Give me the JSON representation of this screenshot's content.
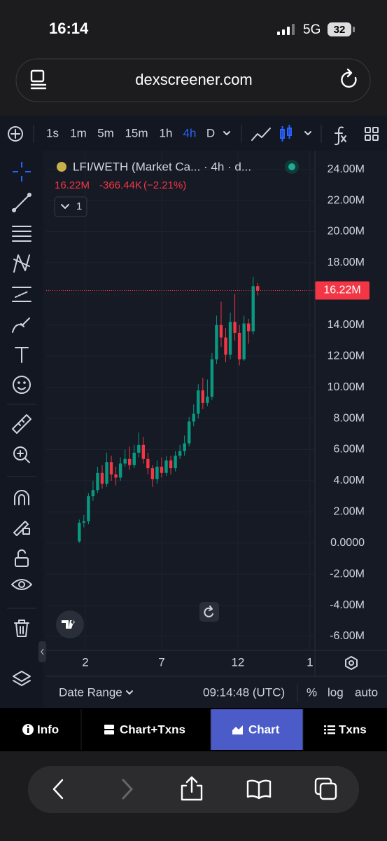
{
  "status_bar": {
    "time": "16:14",
    "network": "5G",
    "battery": "32"
  },
  "url_bar": {
    "url": "dexscreener.com"
  },
  "toolbar": {
    "timeframes": [
      "1s",
      "1m",
      "5m",
      "15m",
      "1h",
      "4h",
      "D"
    ],
    "active_timeframe": 5
  },
  "chart": {
    "type": "candlestick",
    "legend_title": "LFI/WETH (Market Ca... · 4h · d...",
    "last_value": "16.22M",
    "change": "-366.44K",
    "change_pct": "(−2.21%)",
    "indicator_count": "1",
    "current_price": 16.22,
    "current_price_label": "16.22M",
    "up_color": "#089981",
    "down_color": "#f23645",
    "ylim": [
      -6.9,
      24.75
    ],
    "yticks": [
      {
        "value": 24,
        "label": "24.00M"
      },
      {
        "value": 22,
        "label": "22.00M"
      },
      {
        "value": 20,
        "label": "20.00M"
      },
      {
        "value": 18,
        "label": "18.00M"
      },
      {
        "value": 16,
        "label": "16.00M"
      },
      {
        "value": 14,
        "label": "14.00M"
      },
      {
        "value": 12,
        "label": "12.00M"
      },
      {
        "value": 10,
        "label": "10.00M"
      },
      {
        "value": 8,
        "label": "8.00M"
      },
      {
        "value": 6,
        "label": "6.00M"
      },
      {
        "value": 4,
        "label": "4.00M"
      },
      {
        "value": 2,
        "label": "2.00M"
      },
      {
        "value": 0,
        "label": "0.0000"
      },
      {
        "value": -2,
        "label": "-2.00M"
      },
      {
        "value": -4,
        "label": "-4.00M"
      },
      {
        "value": -6,
        "label": "-6.00M"
      }
    ],
    "xlim": [
      -0.57,
      17.05
    ],
    "xticks": [
      2,
      7,
      12,
      {
        "value": 16.72,
        "label": "1"
      }
    ],
    "grid": true,
    "candles": [
      {
        "x": 1.6,
        "open": 0.1,
        "high": 1.5,
        "low": 0.0,
        "close": 1.3
      },
      {
        "x": 1.9,
        "open": 1.3,
        "high": 1.8,
        "low": 1.0,
        "close": 1.4
      },
      {
        "x": 2.2,
        "open": 1.4,
        "high": 3.2,
        "low": 1.2,
        "close": 3.0
      },
      {
        "x": 2.5,
        "open": 3.0,
        "high": 4.0,
        "low": 2.7,
        "close": 3.4
      },
      {
        "x": 2.8,
        "open": 3.4,
        "high": 4.9,
        "low": 3.2,
        "close": 4.5
      },
      {
        "x": 3.1,
        "open": 4.5,
        "high": 5.0,
        "low": 3.5,
        "close": 3.8
      },
      {
        "x": 3.4,
        "open": 3.8,
        "high": 5.8,
        "low": 3.6,
        "close": 5.2
      },
      {
        "x": 3.7,
        "open": 5.2,
        "high": 5.6,
        "low": 4.0,
        "close": 4.4
      },
      {
        "x": 4.0,
        "open": 4.4,
        "high": 4.9,
        "low": 3.7,
        "close": 4.2
      },
      {
        "x": 4.3,
        "open": 4.2,
        "high": 5.5,
        "low": 4.0,
        "close": 5.1
      },
      {
        "x": 4.6,
        "open": 5.1,
        "high": 6.0,
        "low": 4.9,
        "close": 5.4
      },
      {
        "x": 4.9,
        "open": 5.4,
        "high": 6.2,
        "low": 4.7,
        "close": 5.0
      },
      {
        "x": 5.2,
        "open": 5.0,
        "high": 6.3,
        "low": 4.8,
        "close": 5.8
      },
      {
        "x": 5.5,
        "open": 5.8,
        "high": 7.1,
        "low": 5.5,
        "close": 6.3
      },
      {
        "x": 5.8,
        "open": 6.3,
        "high": 6.8,
        "low": 5.1,
        "close": 5.4
      },
      {
        "x": 6.1,
        "open": 5.4,
        "high": 5.8,
        "low": 4.4,
        "close": 4.8
      },
      {
        "x": 6.4,
        "open": 4.8,
        "high": 5.0,
        "low": 3.6,
        "close": 4.1
      },
      {
        "x": 6.7,
        "open": 4.1,
        "high": 5.3,
        "low": 3.8,
        "close": 4.9
      },
      {
        "x": 7.0,
        "open": 4.9,
        "high": 5.5,
        "low": 4.2,
        "close": 4.5
      },
      {
        "x": 7.3,
        "open": 4.5,
        "high": 5.6,
        "low": 4.3,
        "close": 5.3
      },
      {
        "x": 7.6,
        "open": 5.3,
        "high": 5.6,
        "low": 4.4,
        "close": 4.8
      },
      {
        "x": 7.9,
        "open": 4.8,
        "high": 5.9,
        "low": 4.6,
        "close": 5.6
      },
      {
        "x": 8.2,
        "open": 5.6,
        "high": 6.3,
        "low": 5.4,
        "close": 5.9
      },
      {
        "x": 8.5,
        "open": 5.9,
        "high": 6.9,
        "low": 5.6,
        "close": 6.4
      },
      {
        "x": 8.8,
        "open": 6.4,
        "high": 8.1,
        "low": 6.2,
        "close": 7.8
      },
      {
        "x": 9.1,
        "open": 7.8,
        "high": 8.9,
        "low": 7.5,
        "close": 8.3
      },
      {
        "x": 9.4,
        "open": 8.3,
        "high": 10.2,
        "low": 8.0,
        "close": 9.8
      },
      {
        "x": 9.7,
        "open": 9.8,
        "high": 10.6,
        "low": 8.6,
        "close": 9.0
      },
      {
        "x": 10.0,
        "open": 9.0,
        "high": 10.5,
        "low": 8.8,
        "close": 9.4
      },
      {
        "x": 10.3,
        "open": 9.4,
        "high": 12.2,
        "low": 9.2,
        "close": 11.8
      },
      {
        "x": 10.6,
        "open": 11.8,
        "high": 14.6,
        "low": 11.5,
        "close": 14.0
      },
      {
        "x": 10.9,
        "open": 14.0,
        "high": 15.5,
        "low": 12.6,
        "close": 13.2
      },
      {
        "x": 11.2,
        "open": 13.2,
        "high": 13.8,
        "low": 11.6,
        "close": 12.1
      },
      {
        "x": 11.5,
        "open": 12.1,
        "high": 14.8,
        "low": 11.8,
        "close": 14.2
      },
      {
        "x": 11.8,
        "open": 14.2,
        "high": 16.0,
        "low": 13.0,
        "close": 13.5
      },
      {
        "x": 12.1,
        "open": 13.5,
        "high": 14.0,
        "low": 11.4,
        "close": 11.8
      },
      {
        "x": 12.4,
        "open": 11.8,
        "high": 14.6,
        "low": 11.7,
        "close": 14.1
      },
      {
        "x": 12.7,
        "open": 14.1,
        "high": 14.4,
        "low": 12.8,
        "close": 13.6
      },
      {
        "x": 13.0,
        "open": 13.6,
        "high": 17.1,
        "low": 13.4,
        "close": 16.5
      },
      {
        "x": 13.3,
        "open": 16.5,
        "high": 16.7,
        "low": 15.9,
        "close": 16.22
      }
    ]
  },
  "chart_footer": {
    "date_range": "Date Range",
    "time": "09:14:48 (UTC)",
    "percent": "%",
    "log": "log",
    "auto": "auto"
  },
  "tabs": [
    {
      "label": "Info"
    },
    {
      "label": "Chart+Txns"
    },
    {
      "label": "Chart"
    },
    {
      "label": "Txns"
    }
  ],
  "active_tab": 2
}
